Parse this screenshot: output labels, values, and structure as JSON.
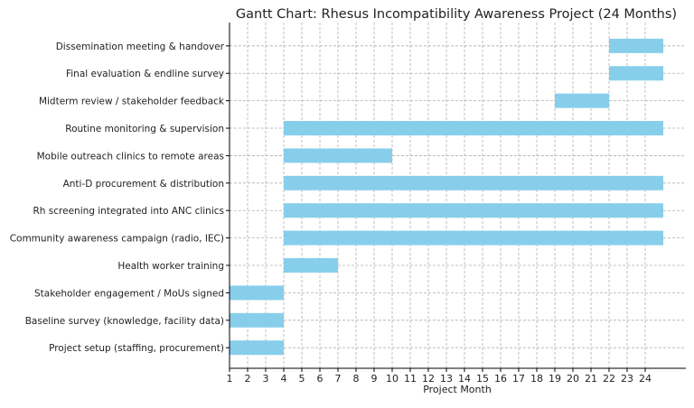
{
  "chart_data": {
    "type": "bar",
    "orientation": "horizontal-gantt",
    "title": "Gantt Chart: Rhesus Incompatibility Awareness Project (24 Months)",
    "xlabel": "Project Month",
    "ylabel": "",
    "xlim": [
      1,
      26.25
    ],
    "xticks": [
      1,
      2,
      3,
      4,
      5,
      6,
      7,
      8,
      9,
      10,
      11,
      12,
      13,
      14,
      15,
      16,
      17,
      18,
      19,
      20,
      21,
      22,
      23,
      24
    ],
    "grid": true,
    "bar_color": "#87ceeb",
    "tasks": [
      {
        "name": "Project setup (staffing, procurement)",
        "start": 1,
        "end": 4
      },
      {
        "name": "Baseline survey (knowledge, facility data)",
        "start": 1,
        "end": 4
      },
      {
        "name": "Stakeholder engagement / MoUs signed",
        "start": 1,
        "end": 4
      },
      {
        "name": "Health worker training",
        "start": 4,
        "end": 7
      },
      {
        "name": "Community awareness campaign (radio, IEC)",
        "start": 4,
        "end": 25
      },
      {
        "name": "Rh screening integrated into ANC clinics",
        "start": 4,
        "end": 25
      },
      {
        "name": "Anti-D procurement & distribution",
        "start": 4,
        "end": 25
      },
      {
        "name": "Mobile outreach clinics to remote areas",
        "start": 4,
        "end": 10
      },
      {
        "name": "Routine monitoring & supervision",
        "start": 4,
        "end": 25
      },
      {
        "name": "Midterm review / stakeholder feedback",
        "start": 19,
        "end": 22
      },
      {
        "name": "Final evaluation & endline survey",
        "start": 22,
        "end": 25
      },
      {
        "name": "Dissemination meeting & handover",
        "start": 22,
        "end": 25
      }
    ]
  }
}
